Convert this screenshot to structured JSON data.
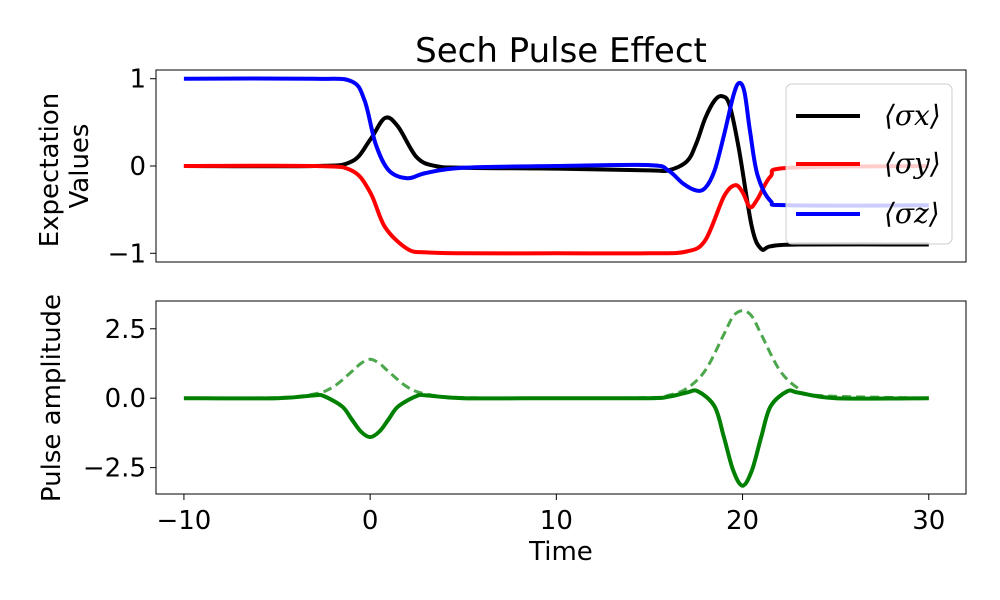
{
  "chart_data": [
    {
      "type": "line",
      "title": "Sech Pulse Effect",
      "ylabel": [
        "Expectation",
        "Values"
      ],
      "xlabel": "",
      "xlim": [
        -11.5,
        32
      ],
      "ylim": [
        -1.1,
        1.1
      ],
      "yticks": [
        1,
        0,
        -1
      ],
      "ytick_labels": [
        "1",
        "0",
        "−1"
      ],
      "legend": {
        "placement": "top-right",
        "entries": [
          "⟨σx⟩",
          "⟨σy⟩",
          "⟨σz⟩"
        ]
      },
      "grid": false,
      "series": [
        {
          "name": "⟨σx⟩",
          "color": "#000000",
          "x": [
            -10,
            -3,
            -1,
            0,
            0.8,
            1.5,
            2.5,
            3.5,
            5,
            10,
            15,
            16,
            17,
            17.5,
            18,
            18.5,
            18.9,
            19.3,
            19.8,
            20.5,
            21,
            21.5,
            23,
            30
          ],
          "y": [
            0,
            0,
            0.05,
            0.3,
            0.55,
            0.45,
            0.1,
            0,
            -0.02,
            -0.03,
            -0.05,
            -0.05,
            0.05,
            0.25,
            0.55,
            0.75,
            0.8,
            0.7,
            0.2,
            -0.7,
            -0.95,
            -0.92,
            -0.9,
            -0.9
          ]
        },
        {
          "name": "⟨σy⟩",
          "color": "#ff0000",
          "x": [
            -10,
            -3,
            -1,
            0,
            0.8,
            2,
            3,
            5,
            10,
            15,
            17,
            18,
            19,
            19.6,
            20,
            20.4,
            20.8,
            21.5,
            22.5,
            30
          ],
          "y": [
            0,
            0,
            -0.05,
            -0.3,
            -0.7,
            -0.95,
            -0.99,
            -1,
            -1,
            -1,
            -0.98,
            -0.85,
            -0.35,
            -0.22,
            -0.3,
            -0.47,
            -0.38,
            -0.12,
            -0.02,
            0
          ]
        },
        {
          "name": "⟨σz⟩",
          "color": "#0000ff",
          "x": [
            -10,
            -3,
            -1,
            -0.3,
            0.3,
            1,
            2,
            3,
            5,
            10,
            15,
            16,
            16.8,
            17.5,
            18,
            18.5,
            19,
            19.5,
            19.8,
            20.1,
            20.4,
            20.8,
            21.5,
            22.5,
            30
          ],
          "y": [
            1,
            1,
            0.97,
            0.75,
            0.25,
            -0.05,
            -0.14,
            -0.08,
            -0.02,
            0,
            0.01,
            -0.05,
            -0.2,
            -0.28,
            -0.25,
            -0.05,
            0.35,
            0.8,
            0.95,
            0.85,
            0.4,
            -0.1,
            -0.4,
            -0.45,
            -0.45
          ]
        }
      ]
    },
    {
      "type": "line",
      "title": "",
      "xlabel": "Time",
      "ylabel": "Pulse amplitude",
      "xlim": [
        -11.5,
        32
      ],
      "ylim": [
        -3.45,
        3.5
      ],
      "xticks": [
        -10,
        0,
        10,
        20,
        30
      ],
      "xtick_labels": [
        "−10",
        "0",
        "10",
        "20",
        "30"
      ],
      "yticks": [
        2.5,
        0,
        -2.5
      ],
      "ytick_labels": [
        "2.5",
        "0.0",
        "−2.5"
      ],
      "grid": false,
      "series": [
        {
          "name": "",
          "color": "#008000",
          "style": "solid",
          "x": [
            -10,
            -5,
            -3,
            -2.5,
            -1.5,
            -1,
            -0.5,
            0,
            0.5,
            1,
            1.5,
            2.5,
            3,
            5,
            10,
            15,
            16,
            17,
            17.6,
            18.5,
            19,
            19.5,
            20,
            20.5,
            21,
            21.5,
            22.4,
            23,
            25,
            30
          ],
          "y": [
            0,
            0,
            0.1,
            0.08,
            -0.3,
            -0.75,
            -1.2,
            -1.4,
            -1.2,
            -0.75,
            -0.3,
            0.08,
            0.1,
            0,
            0,
            0,
            0.05,
            0.2,
            0.25,
            -0.3,
            -1.4,
            -2.6,
            -3.15,
            -2.6,
            -1.4,
            -0.3,
            0.25,
            0.2,
            0,
            0
          ]
        },
        {
          "name": "",
          "color": "#008000",
          "style": "dashed",
          "x": [
            -10,
            -5,
            -3,
            -2,
            -1,
            -0.5,
            0,
            0.5,
            1,
            2,
            3,
            5,
            10,
            15,
            16,
            17,
            18,
            19,
            19.5,
            20,
            20.5,
            21,
            22,
            23,
            24,
            30
          ],
          "y": [
            0,
            0.02,
            0.15,
            0.4,
            0.95,
            1.25,
            1.4,
            1.25,
            0.95,
            0.4,
            0.15,
            0.02,
            0,
            0.02,
            0.1,
            0.35,
            1.0,
            2.3,
            2.95,
            3.15,
            2.95,
            2.3,
            1.0,
            0.35,
            0.1,
            0
          ]
        }
      ]
    }
  ]
}
